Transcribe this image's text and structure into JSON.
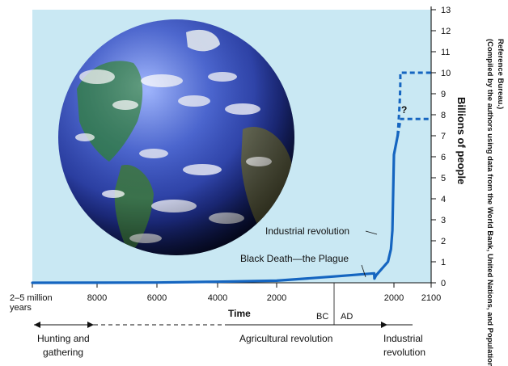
{
  "chart_data": {
    "type": "line",
    "title": "",
    "ylabel": "Billions of people",
    "xlabel": "Time",
    "ylim": [
      0,
      13
    ],
    "y_ticks": [
      "0",
      "1",
      "2",
      "3",
      "4",
      "5",
      "6",
      "7",
      "8",
      "9",
      "10",
      "11",
      "12",
      "13"
    ],
    "x_tick_labels": [
      "2–5 million",
      "years",
      "8000",
      "6000",
      "4000",
      "2000",
      "2000",
      "2100"
    ],
    "era_labels": {
      "bc": "BC",
      "ad": "AD"
    },
    "series": [
      {
        "x": [
          "2-5 million years",
          "8000 BC",
          "6000 BC",
          "4000 BC",
          "2000 BC",
          "1 AD",
          "1340 AD",
          "1350 AD",
          "1400 AD",
          "1800 AD",
          "1900 AD",
          "1950 AD",
          "2000 AD",
          "2010 AD"
        ],
        "values": [
          0,
          0.005,
          0.01,
          0.05,
          0.1,
          0.3,
          0.45,
          0.2,
          0.35,
          1.0,
          1.6,
          2.5,
          6.1,
          7.0
        ]
      }
    ],
    "projections": [
      {
        "x": [
          "2010 AD",
          "2030 AD",
          "2100 AD"
        ],
        "values": [
          7.0,
          9.2,
          10
        ]
      },
      {
        "x": [
          "2010 AD",
          "2030 AD",
          "2100 AD"
        ],
        "values": [
          7.0,
          7.8,
          7.8
        ]
      }
    ],
    "annotations": {
      "industrial": "Industrial revolution",
      "plague": "Black Death—the Plague",
      "question": "?"
    },
    "periods": {
      "hunting_line1": "Hunting and",
      "hunting_line2": "gathering",
      "agricultural": "Agricultural revolution",
      "industrial_line1": "Industrial",
      "industrial_line2": "revolution"
    },
    "credit": {
      "line1": "(Compiled by the authors using data from the World Bank, United Nations, and Population",
      "line2": "Reference Bureau.)"
    },
    "colors": {
      "background": "#c9e8f3",
      "line": "#1565c0",
      "text": "#111111"
    }
  }
}
